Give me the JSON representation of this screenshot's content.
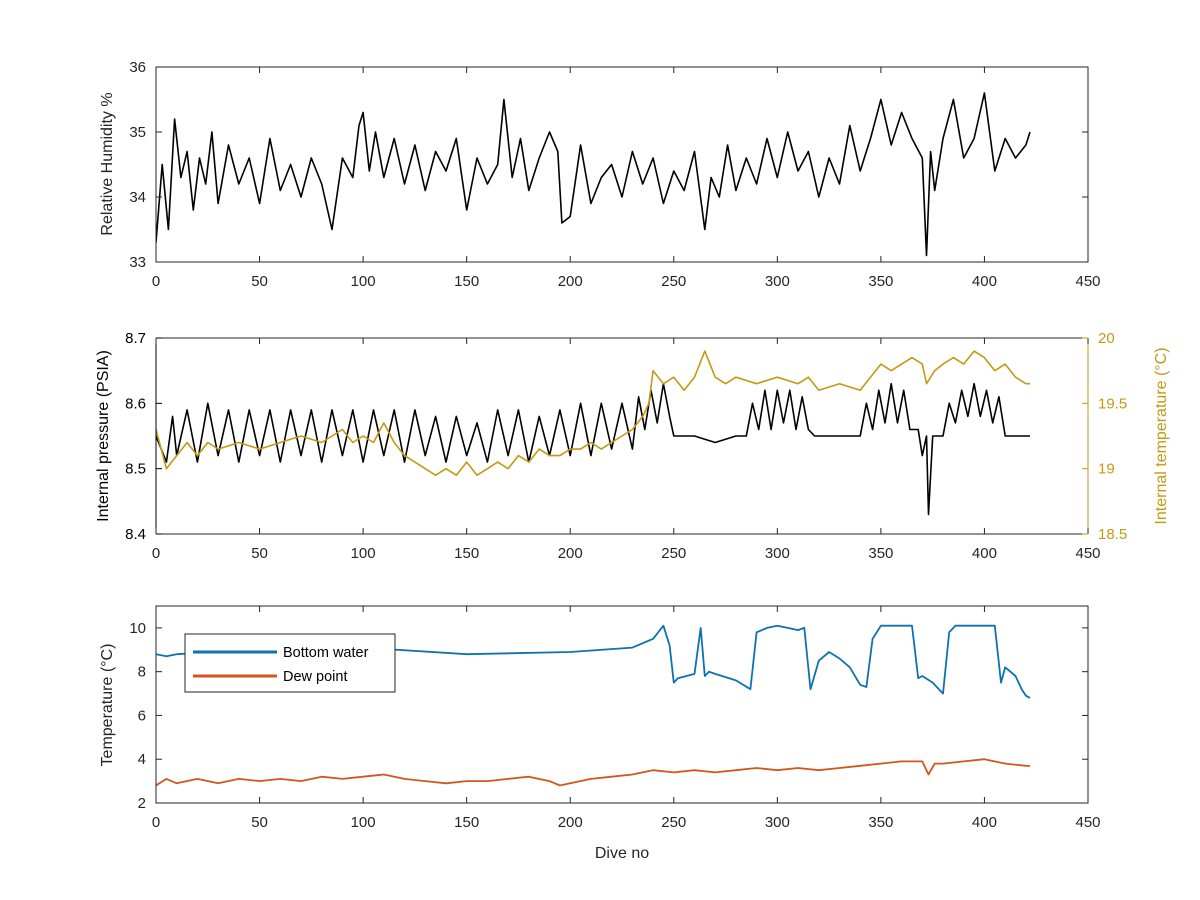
{
  "figure": {
    "xlabel": "Dive no"
  },
  "chart_data": [
    {
      "type": "line",
      "title": "",
      "xlabel": "",
      "ylabel": "Relative Humidity %",
      "xlim": [
        0,
        450
      ],
      "ylim": [
        33,
        36
      ],
      "xticks": [
        0,
        50,
        100,
        150,
        200,
        250,
        300,
        350,
        400,
        450
      ],
      "yticks": [
        33,
        34,
        35,
        36
      ],
      "grid": false,
      "series": [
        {
          "color": "#000000",
          "x": [
            0,
            3,
            6,
            9,
            12,
            15,
            18,
            21,
            24,
            27,
            30,
            35,
            40,
            45,
            50,
            55,
            60,
            65,
            70,
            75,
            80,
            85,
            90,
            95,
            98,
            100,
            103,
            106,
            110,
            115,
            120,
            125,
            130,
            135,
            140,
            145,
            150,
            155,
            160,
            165,
            168,
            172,
            176,
            180,
            185,
            190,
            194,
            196,
            200,
            205,
            210,
            215,
            220,
            225,
            230,
            235,
            240,
            245,
            250,
            255,
            260,
            265,
            268,
            272,
            276,
            280,
            285,
            290,
            295,
            300,
            305,
            310,
            315,
            320,
            325,
            330,
            335,
            340,
            345,
            350,
            355,
            360,
            365,
            370,
            372,
            374,
            376,
            380,
            385,
            390,
            395,
            400,
            405,
            410,
            415,
            420,
            422
          ],
          "values": [
            33.3,
            34.5,
            33.5,
            35.2,
            34.3,
            34.7,
            33.8,
            34.6,
            34.2,
            35.0,
            33.9,
            34.8,
            34.2,
            34.6,
            33.9,
            34.9,
            34.1,
            34.5,
            34.0,
            34.6,
            34.2,
            33.5,
            34.6,
            34.3,
            35.1,
            35.3,
            34.4,
            35.0,
            34.3,
            34.9,
            34.2,
            34.8,
            34.1,
            34.7,
            34.4,
            34.9,
            33.8,
            34.6,
            34.2,
            34.5,
            35.5,
            34.3,
            34.9,
            34.1,
            34.6,
            35.0,
            34.7,
            33.6,
            33.7,
            34.8,
            33.9,
            34.3,
            34.5,
            34.0,
            34.7,
            34.2,
            34.6,
            33.9,
            34.4,
            34.1,
            34.7,
            33.5,
            34.3,
            34.0,
            34.8,
            34.1,
            34.6,
            34.2,
            34.9,
            34.3,
            35.0,
            34.4,
            34.7,
            34.0,
            34.6,
            34.2,
            35.1,
            34.4,
            34.9,
            35.5,
            34.8,
            35.3,
            34.9,
            34.6,
            33.1,
            34.7,
            34.1,
            34.9,
            35.5,
            34.6,
            34.9,
            35.6,
            34.4,
            34.9,
            34.6,
            34.8,
            35.0
          ]
        }
      ]
    },
    {
      "type": "line",
      "title": "",
      "xlabel": "",
      "ylabel": "Internal pressure (PSIA)",
      "y2label": "Internal temperature (°C)",
      "xlim": [
        0,
        450
      ],
      "ylim": [
        8.4,
        8.7
      ],
      "y2lim": [
        18.5,
        20
      ],
      "xticks": [
        0,
        50,
        100,
        150,
        200,
        250,
        300,
        350,
        400,
        450
      ],
      "yticks": [
        8.4,
        8.5,
        8.6,
        8.7
      ],
      "y2ticks": [
        18.5,
        19,
        19.5,
        20
      ],
      "grid": false,
      "series": [
        {
          "color": "#000000",
          "axis": "left",
          "x": [
            0,
            5,
            8,
            10,
            15,
            20,
            25,
            30,
            35,
            40,
            45,
            50,
            55,
            60,
            65,
            70,
            75,
            80,
            85,
            90,
            95,
            100,
            105,
            110,
            115,
            120,
            125,
            130,
            135,
            140,
            145,
            150,
            155,
            160,
            165,
            170,
            175,
            180,
            185,
            190,
            195,
            200,
            205,
            210,
            215,
            220,
            225,
            230,
            233,
            236,
            239,
            242,
            245,
            248,
            250,
            260,
            270,
            280,
            285,
            288,
            291,
            294,
            297,
            300,
            303,
            306,
            309,
            312,
            315,
            318,
            330,
            340,
            343,
            346,
            349,
            352,
            355,
            358,
            361,
            364,
            368,
            370,
            372,
            373,
            375,
            380,
            383,
            386,
            389,
            392,
            395,
            398,
            401,
            404,
            407,
            410,
            420,
            422
          ],
          "values": [
            8.55,
            8.51,
            8.58,
            8.52,
            8.59,
            8.51,
            8.6,
            8.52,
            8.59,
            8.51,
            8.59,
            8.52,
            8.59,
            8.51,
            8.59,
            8.52,
            8.59,
            8.51,
            8.59,
            8.52,
            8.59,
            8.51,
            8.59,
            8.52,
            8.59,
            8.51,
            8.59,
            8.52,
            8.58,
            8.51,
            8.58,
            8.52,
            8.57,
            8.51,
            8.59,
            8.52,
            8.59,
            8.51,
            8.58,
            8.52,
            8.59,
            8.52,
            8.6,
            8.52,
            8.6,
            8.53,
            8.6,
            8.53,
            8.61,
            8.56,
            8.62,
            8.57,
            8.63,
            8.58,
            8.55,
            8.55,
            8.54,
            8.55,
            8.55,
            8.6,
            8.56,
            8.62,
            8.56,
            8.62,
            8.57,
            8.62,
            8.56,
            8.61,
            8.56,
            8.55,
            8.55,
            8.55,
            8.6,
            8.56,
            8.62,
            8.57,
            8.63,
            8.57,
            8.62,
            8.56,
            8.56,
            8.52,
            8.55,
            8.43,
            8.55,
            8.55,
            8.6,
            8.57,
            8.62,
            8.58,
            8.63,
            8.58,
            8.62,
            8.57,
            8.61,
            8.55,
            8.55,
            8.55
          ]
        },
        {
          "color": "#C49A10",
          "axis": "right",
          "x": [
            0,
            5,
            10,
            15,
            20,
            25,
            30,
            40,
            50,
            60,
            70,
            80,
            90,
            95,
            100,
            105,
            110,
            115,
            120,
            125,
            130,
            135,
            140,
            145,
            150,
            155,
            160,
            165,
            170,
            175,
            180,
            185,
            190,
            195,
            200,
            205,
            210,
            215,
            220,
            225,
            230,
            235,
            238,
            240,
            245,
            250,
            255,
            260,
            265,
            270,
            275,
            280,
            290,
            300,
            310,
            315,
            320,
            330,
            340,
            350,
            355,
            360,
            365,
            370,
            372,
            374,
            376,
            380,
            385,
            390,
            395,
            400,
            405,
            410,
            415,
            420,
            422
          ],
          "values": [
            19.3,
            19.0,
            19.1,
            19.2,
            19.1,
            19.2,
            19.15,
            19.2,
            19.15,
            19.2,
            19.25,
            19.2,
            19.3,
            19.2,
            19.25,
            19.2,
            19.35,
            19.2,
            19.1,
            19.05,
            19.0,
            18.95,
            19.0,
            18.95,
            19.05,
            18.95,
            19.0,
            19.05,
            19.0,
            19.1,
            19.05,
            19.15,
            19.1,
            19.1,
            19.15,
            19.15,
            19.2,
            19.15,
            19.2,
            19.25,
            19.3,
            19.4,
            19.5,
            19.75,
            19.65,
            19.7,
            19.6,
            19.7,
            19.9,
            19.7,
            19.65,
            19.7,
            19.65,
            19.7,
            19.65,
            19.7,
            19.6,
            19.65,
            19.6,
            19.8,
            19.75,
            19.8,
            19.85,
            19.8,
            19.65,
            19.7,
            19.75,
            19.8,
            19.85,
            19.8,
            19.9,
            19.85,
            19.75,
            19.8,
            19.7,
            19.65,
            19.65
          ]
        }
      ]
    },
    {
      "type": "line",
      "title": "",
      "xlabel": "Dive no",
      "ylabel": "Temperature (°C)",
      "xlim": [
        0,
        450
      ],
      "ylim": [
        2,
        11
      ],
      "xticks": [
        0,
        50,
        100,
        150,
        200,
        250,
        300,
        350,
        400,
        450
      ],
      "yticks": [
        2,
        4,
        6,
        8,
        10
      ],
      "grid": false,
      "legend": "top-left",
      "series": [
        {
          "name": "Bottom water",
          "color": "#0E72B0",
          "x": [
            0,
            5,
            10,
            50,
            100,
            150,
            200,
            230,
            240,
            245,
            248,
            250,
            252,
            260,
            263,
            265,
            267,
            270,
            280,
            287,
            290,
            295,
            300,
            305,
            310,
            313,
            316,
            320,
            325,
            330,
            335,
            340,
            343,
            346,
            350,
            355,
            360,
            365,
            368,
            370,
            375,
            380,
            383,
            386,
            390,
            400,
            405,
            408,
            410,
            415,
            418,
            420,
            422
          ],
          "values": [
            8.8,
            8.7,
            8.8,
            9.0,
            9.1,
            8.8,
            8.9,
            9.1,
            9.5,
            10.1,
            9.2,
            7.5,
            7.7,
            7.9,
            10.0,
            7.8,
            8.0,
            7.9,
            7.6,
            7.2,
            9.8,
            10.0,
            10.1,
            10.0,
            9.9,
            10.0,
            7.2,
            8.5,
            8.9,
            8.6,
            8.2,
            7.4,
            7.3,
            9.5,
            10.1,
            10.1,
            10.1,
            10.1,
            7.7,
            7.8,
            7.5,
            7.0,
            9.8,
            10.1,
            10.1,
            10.1,
            10.1,
            7.5,
            8.2,
            7.8,
            7.2,
            6.9,
            6.8
          ]
        },
        {
          "name": "Dew point",
          "color": "#D4561C",
          "x": [
            0,
            5,
            10,
            20,
            30,
            40,
            50,
            60,
            70,
            80,
            90,
            100,
            110,
            120,
            130,
            140,
            150,
            160,
            170,
            180,
            190,
            195,
            200,
            210,
            220,
            230,
            240,
            250,
            260,
            270,
            280,
            290,
            300,
            310,
            320,
            330,
            340,
            350,
            360,
            370,
            373,
            376,
            380,
            390,
            400,
            410,
            420,
            422
          ],
          "values": [
            2.8,
            3.1,
            2.9,
            3.1,
            2.9,
            3.1,
            3.0,
            3.1,
            3.0,
            3.2,
            3.1,
            3.2,
            3.3,
            3.1,
            3.0,
            2.9,
            3.0,
            3.0,
            3.1,
            3.2,
            3.0,
            2.8,
            2.9,
            3.1,
            3.2,
            3.3,
            3.5,
            3.4,
            3.5,
            3.4,
            3.5,
            3.6,
            3.5,
            3.6,
            3.5,
            3.6,
            3.7,
            3.8,
            3.9,
            3.9,
            3.3,
            3.8,
            3.8,
            3.9,
            4.0,
            3.8,
            3.7,
            3.7
          ]
        }
      ]
    }
  ]
}
